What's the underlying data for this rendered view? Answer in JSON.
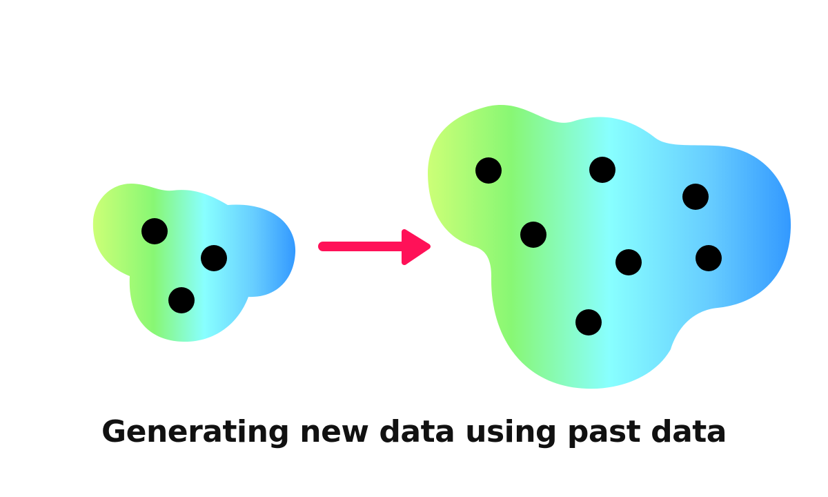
{
  "caption": "Generating new data using past data",
  "colors": {
    "gradient": [
      "#ccff77",
      "#88f774",
      "#88ffff",
      "#66ccff",
      "#3399ff"
    ],
    "arrow": "#ff1158",
    "point": "#000000"
  },
  "icons": [
    "small-blob-icon",
    "arrow-right-icon",
    "large-blob-icon",
    "data-point-icon"
  ],
  "clusters": [
    {
      "name": "past-data",
      "point_count": 3
    },
    {
      "name": "new-data",
      "point_count": 7
    }
  ]
}
